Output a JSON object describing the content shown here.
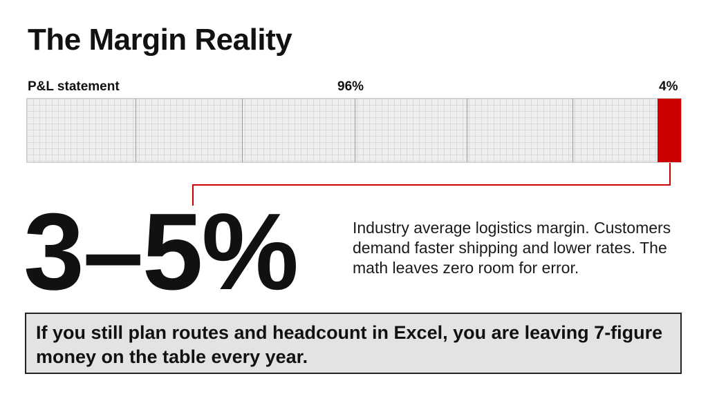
{
  "title": "The Margin Reality",
  "bar": {
    "label": "P&L statement",
    "costs_label": "96%",
    "margin_label": "4%",
    "costs_share": 96,
    "margin_share": 4,
    "margin_color": "#cc0000",
    "background_color": "#eeeeee"
  },
  "headline_stat": "3–5%",
  "description": "Industry average logistics margin. Customers demand faster shipping and lower rates. The math leaves zero room for error.",
  "callout": "If you still plan routes and headcount in Excel, you are leaving 7-figure money on the table every year.",
  "accent_color": "#cc0000"
}
